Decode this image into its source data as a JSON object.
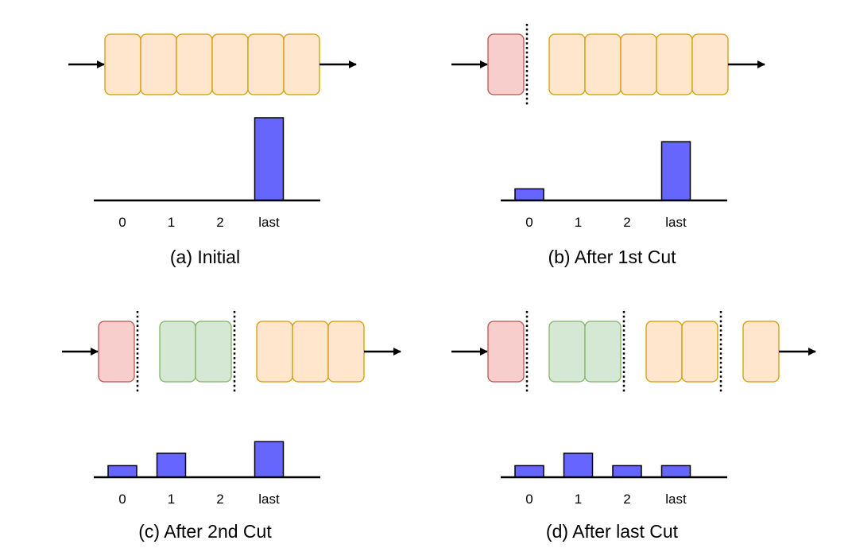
{
  "panels": [
    {
      "caption": "(a)  Initial",
      "cells": [
        "orange",
        "orange",
        "orange",
        "orange",
        "orange",
        "orange"
      ],
      "chart_data": {
        "type": "bar",
        "categories": [
          "0",
          "1",
          "2",
          "last"
        ],
        "values": [
          0,
          0,
          0,
          1.0
        ]
      }
    },
    {
      "caption": "(b)  After 1st Cut",
      "cells": [
        "red",
        "divider",
        "orange",
        "orange",
        "orange",
        "orange",
        "orange"
      ],
      "chart_data": {
        "type": "bar",
        "categories": [
          "0",
          "1",
          "2",
          "last"
        ],
        "values": [
          0.14,
          0,
          0,
          0.71
        ]
      }
    },
    {
      "caption": "(c)  After 2nd Cut",
      "cells": [
        "red",
        "divider",
        "green",
        "green",
        "divider",
        "orange",
        "orange",
        "orange"
      ],
      "chart_data": {
        "type": "bar",
        "categories": [
          "0",
          "1",
          "2",
          "last"
        ],
        "values": [
          0.14,
          0.29,
          0,
          0.43
        ]
      }
    },
    {
      "caption": "(d)  After last Cut",
      "cells": [
        "red",
        "divider",
        "green",
        "green",
        "divider",
        "orange",
        "orange",
        "divider",
        "orange"
      ],
      "chart_data": {
        "type": "bar",
        "categories": [
          "0",
          "1",
          "2",
          "last"
        ],
        "values": [
          0.14,
          0.29,
          0.14,
          0.14
        ]
      }
    }
  ],
  "colors": {
    "orange_fill": "#ffe6cc",
    "orange_stroke": "#d79b00",
    "red_fill": "#f8cecc",
    "red_stroke": "#b85450",
    "green_fill": "#d5e8d4",
    "green_stroke": "#82b366",
    "bar": "#6666ff"
  }
}
